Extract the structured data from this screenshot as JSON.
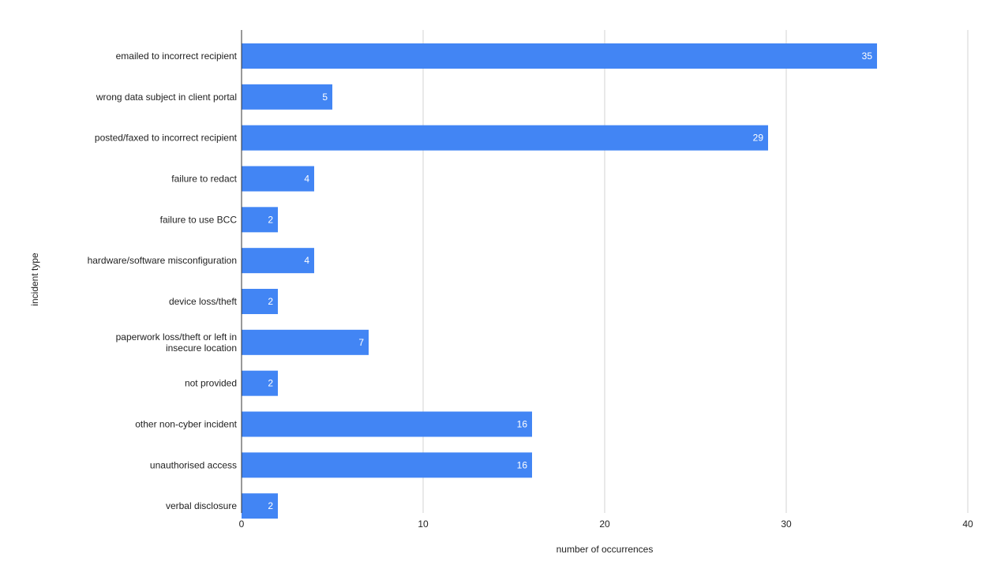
{
  "chart_data": {
    "type": "bar",
    "orientation": "horizontal",
    "title": "",
    "xlabel": "number of occurrences",
    "ylabel": "incident type",
    "xlim": [
      0,
      40
    ],
    "x_ticks": [
      0,
      10,
      20,
      30,
      40
    ],
    "grid": true,
    "legend": "none",
    "bar_color": "#4285f4",
    "categories": [
      "emailed to incorrect recipient",
      "wrong data subject in client portal",
      "posted/faxed to incorrect recipient",
      "failure to redact",
      "failure to use BCC",
      "hardware/software misconfiguration",
      "device loss/theft",
      "paperwork loss/theft or left in insecure location",
      "not provided",
      "other non-cyber incident",
      "unauthorised access",
      "verbal disclosure"
    ],
    "values": [
      35,
      5,
      29,
      4,
      2,
      4,
      2,
      7,
      2,
      16,
      16,
      2
    ]
  }
}
